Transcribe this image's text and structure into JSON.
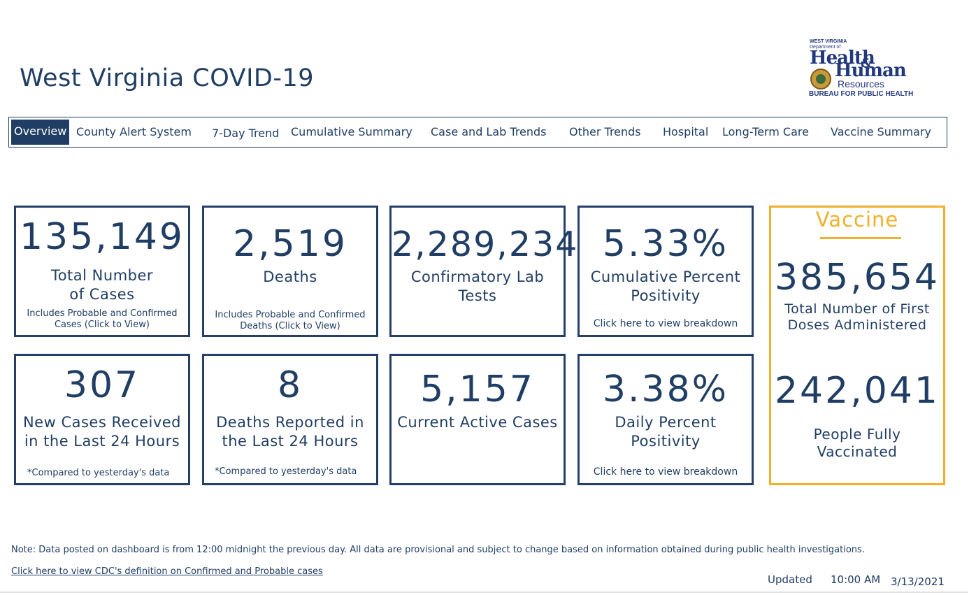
{
  "title": "West Virginia COVID-19",
  "logo": {
    "line1": "WEST VIRGINIA",
    "line2": "Department of",
    "health": "Health",
    "amp": "&",
    "human": "Human",
    "resources": "Resources",
    "bureau": "BUREAU FOR PUBLIC HEALTH"
  },
  "tabs": [
    {
      "label": "Overview"
    },
    {
      "label": "County Alert System"
    },
    {
      "label": "7-Day Trend"
    },
    {
      "label": "Cumulative Summary"
    },
    {
      "label": "Case and Lab Trends"
    },
    {
      "label": "Other Trends"
    },
    {
      "label": "Hospital"
    },
    {
      "label": "Long-Term Care"
    },
    {
      "label": "Vaccine Summary"
    }
  ],
  "cards": {
    "total_cases": {
      "value": "135,149",
      "label": "Total Number of Cases",
      "sub": "Includes Probable and Confirmed Cases (Click to View)"
    },
    "deaths": {
      "value": "2,519",
      "label": "Deaths",
      "sub": "Includes Probable and Confirmed Deaths (Click to View)"
    },
    "lab_tests": {
      "value": "2,289,234",
      "label": "Confirmatory Lab Tests"
    },
    "cum_positivity": {
      "value": "5.33%",
      "label": "Cumulative Percent Positivity",
      "sub": "Click here to view breakdown"
    },
    "new_cases": {
      "value": "307",
      "label": "New Cases Received in the Last 24 Hours",
      "sub": "*Compared to yesterday's data"
    },
    "new_deaths": {
      "value": "8",
      "label": "Deaths Reported in the Last 24 Hours",
      "sub": "*Compared to yesterday's data"
    },
    "active_cases": {
      "value": "5,157",
      "label": "Current Active Cases"
    },
    "daily_positivity": {
      "value": "3.38%",
      "label": "Daily Percent Positivity",
      "sub": "Click here to view breakdown"
    }
  },
  "vaccine": {
    "title": "Vaccine",
    "first_doses_value": "385,654",
    "first_doses_label": "Total Number of First Doses Administered",
    "fully_value": "242,041",
    "fully_label": "People Fully Vaccinated"
  },
  "footer": {
    "note": "Note: Data posted on dashboard is from 12:00 midnight the previous day. All data are provisional and subject to change based on information obtained during public health investigations.",
    "link": "Click here to view CDC's definition on Confirmed and Probable cases",
    "updated_label": "Updated",
    "updated_time": "10:00 AM",
    "updated_date": "3/13/2021"
  },
  "colors": {
    "navy": "#203e64",
    "gold": "#f0b02a"
  }
}
